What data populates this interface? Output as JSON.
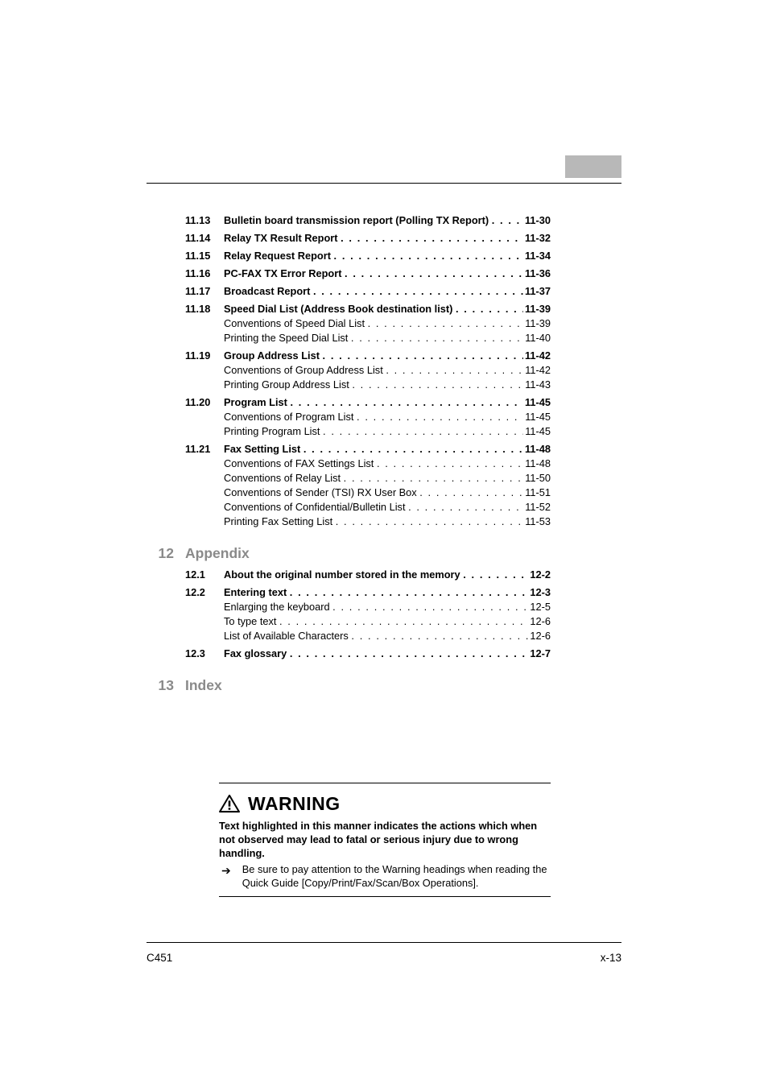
{
  "colors": {
    "tab_bg": "#b8b8b8",
    "chapter_text": "#8a8a8a",
    "rule": "#000000",
    "page_bg": "#ffffff"
  },
  "typography": {
    "body_pt": 9.5,
    "chapter_pt": 13,
    "warning_pt": 17,
    "font_family": "Arial, Helvetica, sans-serif"
  },
  "toc": [
    {
      "kind": "main",
      "num": "11.13",
      "title": "Bulletin board transmission report (Polling TX Report)",
      "page": "11-30",
      "gap": "sect"
    },
    {
      "kind": "main",
      "num": "11.14",
      "title": "Relay TX Result Report",
      "page": "11-32",
      "gap": "group"
    },
    {
      "kind": "main",
      "num": "11.15",
      "title": "Relay Request Report",
      "page": "11-34",
      "gap": "group"
    },
    {
      "kind": "main",
      "num": "11.16",
      "title": "PC-FAX TX Error Report",
      "page": "11-36",
      "gap": "group"
    },
    {
      "kind": "main",
      "num": "11.17",
      "title": "Broadcast Report",
      "page": "11-37",
      "gap": "group"
    },
    {
      "kind": "main",
      "num": "11.18",
      "title": "Speed Dial List (Address Book destination list)",
      "page": "11-39",
      "gap": "group"
    },
    {
      "kind": "sub",
      "title": "Conventions of Speed Dial List",
      "page": "11-39"
    },
    {
      "kind": "sub",
      "title": "Printing the Speed Dial List",
      "page": "11-40"
    },
    {
      "kind": "main",
      "num": "11.19",
      "title": "Group Address List",
      "page": "11-42",
      "gap": "group"
    },
    {
      "kind": "sub",
      "title": "Conventions of Group Address List",
      "page": "11-42"
    },
    {
      "kind": "sub",
      "title": "Printing Group Address List",
      "page": "11-43"
    },
    {
      "kind": "main",
      "num": "11.20",
      "title": "Program List",
      "page": "11-45",
      "gap": "group"
    },
    {
      "kind": "sub",
      "title": "Conventions of Program List",
      "page": "11-45"
    },
    {
      "kind": "sub",
      "title": "Printing Program List",
      "page": "11-45"
    },
    {
      "kind": "main",
      "num": "11.21",
      "title": "Fax Setting List",
      "page": "11-48",
      "gap": "group"
    },
    {
      "kind": "sub",
      "title": "Conventions of FAX Settings List",
      "page": "11-48"
    },
    {
      "kind": "sub",
      "title": "Conventions of Relay List",
      "page": "11-50"
    },
    {
      "kind": "sub",
      "title": "Conventions of Sender (TSI) RX User Box",
      "page": "11-51"
    },
    {
      "kind": "sub",
      "title": "Conventions of Confidential/Bulletin List",
      "page": "11-52"
    },
    {
      "kind": "sub",
      "title": "Printing Fax Setting List",
      "page": "11-53"
    },
    {
      "kind": "chapter",
      "num": "12",
      "title": "Appendix"
    },
    {
      "kind": "main",
      "num": "12.1",
      "title": "About the original number stored in the memory",
      "page": "12-2",
      "gap": "sect"
    },
    {
      "kind": "main",
      "num": "12.2",
      "title": "Entering text",
      "page": "12-3",
      "gap": "group"
    },
    {
      "kind": "sub",
      "title": "Enlarging the keyboard",
      "page": "12-5"
    },
    {
      "kind": "sub",
      "title": "To type text",
      "page": "12-6"
    },
    {
      "kind": "sub",
      "title": "List of Available Characters",
      "page": "12-6"
    },
    {
      "kind": "main",
      "num": "12.3",
      "title": "Fax glossary",
      "page": "12-7",
      "gap": "group"
    },
    {
      "kind": "chapter",
      "num": "13",
      "title": "Index"
    }
  ],
  "warning": {
    "heading": "WARNING",
    "bold_text": "Text highlighted in this manner indicates the actions which when not observed may lead to fatal or serious injury due to wrong handling.",
    "arrow": "➔",
    "body": "Be sure to pay attention to the Warning headings when reading the Quick Guide [Copy/Print/Fax/Scan/Box Operations]."
  },
  "footer": {
    "left": "C451",
    "right": "x-13"
  },
  "dots_fill": ". . . . . . . . . . . . . . . . . . . . . . . . . . . . . . . . . . . . . . . . . . . . . . . . . . . . . . . . . . . . . . . . . . . . . . . . . . . . . . . . . . . . . . . . . . . . . . . . . . . . . . . . . . . . . . . . . . . . . . . . . . . . . . . . . . . . . . . . . . . . . . . ."
}
